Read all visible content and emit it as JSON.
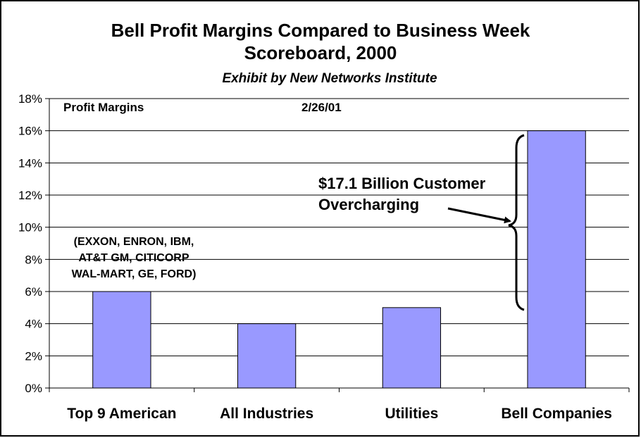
{
  "chart_data": {
    "type": "bar",
    "title_line1": "Bell Profit Margins Compared to Business Week",
    "title_line2": "Scoreboard, 2000",
    "subtitle": "Exhibit by New Networks Institute",
    "categories": [
      "Top 9 American",
      "All Industries",
      "Utilities",
      "Bell Companies"
    ],
    "values": [
      6,
      4,
      5,
      16
    ],
    "ylim": [
      0,
      18
    ],
    "ytick_step": 2,
    "ytick_labels": [
      "0%",
      "2%",
      "4%",
      "6%",
      "8%",
      "10%",
      "12%",
      "14%",
      "16%",
      "18%"
    ],
    "grid": true,
    "bar_color": "#9999ff",
    "annotations": {
      "label_left": "Profit Margins",
      "date": "2/26/01",
      "companies": [
        "(EXXON, ENRON, IBM,",
        "AT&T GM, CITICORP",
        "WAL-MART, GE, FORD)"
      ],
      "callout": [
        "$17.1 Billion Customer",
        "Overcharging"
      ]
    }
  }
}
